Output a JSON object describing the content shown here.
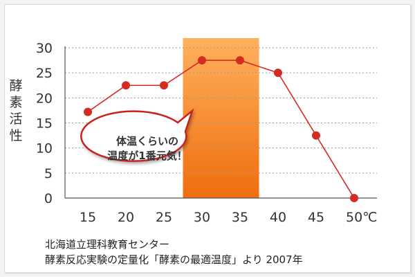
{
  "chart_data": {
    "type": "line",
    "ylabel": "酵素活性",
    "xlabel": "",
    "x": [
      15,
      20,
      25,
      30,
      35,
      40,
      45,
      50
    ],
    "x_tick_labels": [
      "15",
      "20",
      "25",
      "30",
      "35",
      "40",
      "45",
      "50℃"
    ],
    "y_ticks": [
      0,
      5,
      10,
      15,
      20,
      25,
      30
    ],
    "ylim": [
      0,
      30
    ],
    "xlim": [
      12,
      53
    ],
    "series": [
      {
        "values": [
          17.2,
          22.5,
          22.5,
          27.5,
          27.5,
          25,
          12.5,
          0
        ]
      }
    ],
    "highlight_range": [
      27.5,
      37.5
    ],
    "grid": "horizontal-dotted",
    "annotation_lines": [
      "体温くらいの",
      "温度が1番元気！"
    ],
    "colors": {
      "line": "#d42b22",
      "highlight_top": "#ffb15e",
      "highlight_bottom": "#ef6d0e",
      "bubble_border": "#c8231b"
    }
  },
  "source": {
    "line1": "北海道立理科教育センター",
    "line2": "酵素反応実験の定量化「酵素の最適温度」より 2007年"
  }
}
